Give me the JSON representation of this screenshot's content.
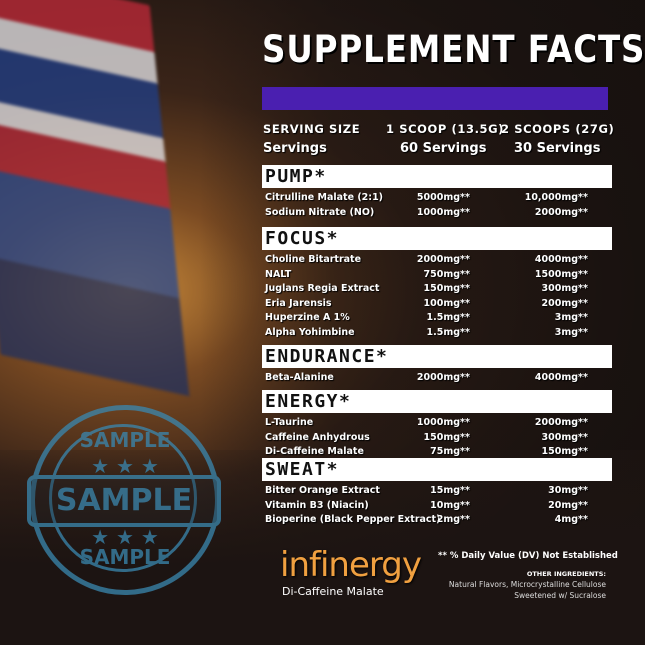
{
  "title": "SUPPLEMENT FACTS",
  "colors": {
    "accent_bar": "#4a1fb0",
    "stamp": "#3a88b0",
    "logo": "#f0a040"
  },
  "serving": {
    "label": "SERVING SIZE",
    "col1": "1 SCOOP (13.5G)",
    "col2": "2 SCOOPS (27G)",
    "servings_label": "Servings",
    "servings1": "60 Servings",
    "servings2": "30 Servings"
  },
  "sections": [
    {
      "name": "PUMP*",
      "rows": [
        [
          "Citrulline Malate (2:1)",
          "5000mg**",
          "10,000mg**"
        ],
        [
          "Sodium Nitrate (NO)",
          "1000mg**",
          "2000mg**"
        ]
      ]
    },
    {
      "name": "FOCUS*",
      "rows": [
        [
          "Choline Bitartrate",
          "2000mg**",
          "4000mg**"
        ],
        [
          "NALT",
          "750mg**",
          "1500mg**"
        ],
        [
          "Juglans Regia Extract",
          "150mg**",
          "300mg**"
        ],
        [
          "Eria Jarensis",
          "100mg**",
          "200mg**"
        ],
        [
          "Huperzine A 1%",
          "1.5mg**",
          "3mg**"
        ],
        [
          "Alpha Yohimbine",
          "1.5mg**",
          "3mg**"
        ]
      ]
    },
    {
      "name": "ENDURANCE*",
      "rows": [
        [
          "Beta-Alanine",
          "2000mg**",
          "4000mg**"
        ]
      ]
    },
    {
      "name": "ENERGY*",
      "rows": [
        [
          "L-Taurine",
          "1000mg**",
          "2000mg**"
        ],
        [
          "Caffeine Anhydrous",
          "150mg**",
          "300mg**"
        ],
        [
          "Di-Caffeine Malate",
          "75mg**",
          "150mg**"
        ]
      ]
    },
    {
      "name": "SWEAT*",
      "rows": [
        [
          "Bitter Orange Extract",
          "15mg**",
          "30mg**"
        ],
        [
          "Vitamin B3 (Niacin)",
          "10mg**",
          "20mg**"
        ],
        [
          "Bioperine (Black Pepper Extract)",
          "2mg**",
          "4mg**"
        ]
      ]
    }
  ],
  "footer": {
    "dv_note": "** % Daily Value (DV) Not Established",
    "other_label": "OTHER INGREDIENTS:",
    "other_text": "Natural Flavors, Microcrystalline Cellulose  Sweetened w/ Sucralose"
  },
  "logo": {
    "name": "infinergy",
    "sub": "Di-Caffeine Malate"
  },
  "stamp": {
    "top": "SAMPLE",
    "center": "SAMPLE",
    "bottom": "SAMPLE"
  }
}
